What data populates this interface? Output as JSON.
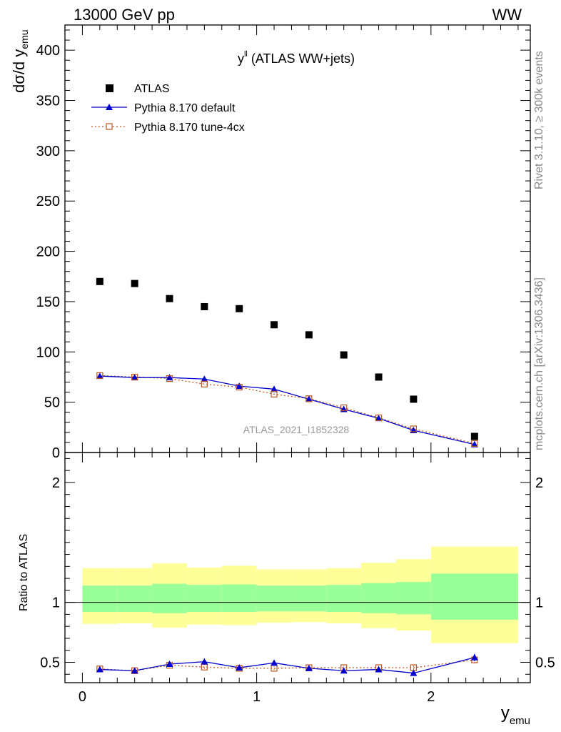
{
  "header": {
    "left": "13000 GeV pp",
    "right": "WW"
  },
  "side_labels": {
    "rivet": "Rivet 3.1.10, ≥ 300k events",
    "mcplots": "mcplots.cern.ch [arXiv:1306.3436]"
  },
  "colors": {
    "atlas": "#000000",
    "default": "#0000cc",
    "tune": "#c0561f",
    "band_inner": "#99ff99",
    "band_outer": "#ffff99"
  },
  "chart_data": [
    {
      "type": "scatter",
      "title": "y^ll (ATLAS WW+jets)",
      "title_main": "y",
      "title_sup": "ll",
      "title_rest": " (ATLAS WW+jets)",
      "ylabel": "dσ/d y",
      "ylabel_sub": "emu",
      "watermark": "ATLAS_2021_I1852328",
      "xlim": [
        -0.1,
        2.57
      ],
      "ylim": [
        0,
        425
      ],
      "yticks": [
        0,
        50,
        100,
        150,
        200,
        250,
        300,
        350,
        400
      ],
      "ytick_labels": [
        "0",
        "50",
        "100",
        "150",
        "200",
        "250",
        "300",
        "350",
        "400"
      ],
      "legend_position": "top-left",
      "x": [
        0.1,
        0.3,
        0.5,
        0.7,
        0.9,
        1.1,
        1.3,
        1.5,
        1.7,
        1.9,
        2.25
      ],
      "series": [
        {
          "name": "ATLAS",
          "marker": "square",
          "values": [
            170,
            168,
            153,
            145,
            143,
            127,
            117,
            97,
            75,
            53,
            16
          ]
        },
        {
          "name": "Pythia 8.170 default",
          "marker": "triangle",
          "values": [
            76,
            74.5,
            74.5,
            73,
            66,
            63,
            53,
            43,
            34,
            22,
            8
          ]
        },
        {
          "name": "Pythia 8.170 tune-4cx",
          "marker": "open-square",
          "values": [
            76.5,
            75,
            73.5,
            68,
            65,
            58,
            53.5,
            44.5,
            34.5,
            23.5,
            9
          ]
        }
      ]
    },
    {
      "type": "scatter",
      "ylabel": "Ratio to ATLAS",
      "xlabel": "y",
      "xlabel_sub": "emu",
      "xlim": [
        -0.1,
        2.57
      ],
      "ylim": [
        0.33,
        2.25
      ],
      "xticks": [
        0,
        1,
        2
      ],
      "xtick_labels": [
        "0",
        "1",
        "2"
      ],
      "yticks": [
        0.5,
        1,
        2
      ],
      "ytick_labels": [
        "0.5",
        "1",
        "2"
      ],
      "bin_edges": [
        0,
        0.2,
        0.4,
        0.6,
        0.8,
        1.0,
        1.2,
        1.4,
        1.6,
        1.8,
        2.0,
        2.5
      ],
      "band_inner_low": [
        0.92,
        0.92,
        0.91,
        0.92,
        0.92,
        0.925,
        0.925,
        0.92,
        0.91,
        0.9,
        0.855
      ],
      "band_inner_high": [
        1.14,
        1.14,
        1.155,
        1.145,
        1.15,
        1.14,
        1.14,
        1.145,
        1.16,
        1.17,
        1.24
      ],
      "band_outer_low": [
        0.82,
        0.825,
        0.79,
        0.815,
        0.81,
        0.83,
        0.835,
        0.825,
        0.785,
        0.765,
        0.66
      ],
      "band_outer_high": [
        1.285,
        1.285,
        1.325,
        1.29,
        1.305,
        1.275,
        1.275,
        1.285,
        1.33,
        1.36,
        1.465
      ],
      "x": [
        0.1,
        0.3,
        0.5,
        0.7,
        0.9,
        1.1,
        1.3,
        1.5,
        1.7,
        1.9,
        2.25
      ],
      "series": [
        {
          "name": "Pythia 8.170 default",
          "values": [
            0.44,
            0.43,
            0.485,
            0.505,
            0.455,
            0.495,
            0.45,
            0.43,
            0.44,
            0.41,
            0.54
          ],
          "errors": [
            0.012,
            0.012,
            0.015,
            0.016,
            0.016,
            0.017,
            0.015,
            0.015,
            0.016,
            0.018,
            0.03
          ]
        },
        {
          "name": "Pythia 8.170 tune-4cx",
          "values": [
            0.445,
            0.43,
            0.475,
            0.46,
            0.45,
            0.45,
            0.455,
            0.455,
            0.455,
            0.455,
            0.52
          ],
          "errors": [
            0.012,
            0.012,
            0.014,
            0.014,
            0.014,
            0.015,
            0.015,
            0.015,
            0.016,
            0.018,
            0.03
          ]
        }
      ]
    }
  ]
}
